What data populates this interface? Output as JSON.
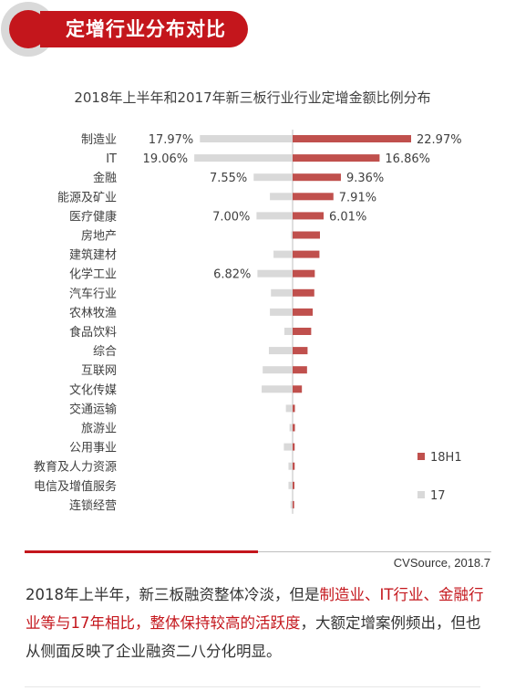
{
  "header": {
    "title": "定增行业分布对比"
  },
  "chart_data": {
    "type": "bar",
    "title": "2018年上半年和2017年新三板行业行业定增金额比例分布",
    "categories": [
      "制造业",
      "IT",
      "金融",
      "能源及矿业",
      "医疗健康",
      "房地产",
      "建筑建材",
      "化学工业",
      "汽车行业",
      "农林牧渔",
      "食品饮料",
      "综合",
      "互联网",
      "文化传媒",
      "交通运输",
      "旅游业",
      "公用事业",
      "教育及人力资源",
      "电信及增值服务",
      "连锁经营"
    ],
    "series": [
      {
        "name": "18H1",
        "color": "#c0504d",
        "values": [
          22.97,
          16.86,
          9.36,
          7.91,
          6.01,
          5.3,
          5.2,
          4.3,
          4.2,
          3.9,
          3.6,
          2.9,
          2.8,
          1.8,
          0.45,
          0.45,
          0.4,
          0.4,
          0.35,
          0.3
        ],
        "labels": [
          "22.97%",
          "16.86%",
          "9.36%",
          "7.91%",
          "6.01%",
          "",
          "",
          "",
          "",
          "",
          "",
          "",
          "",
          "",
          "",
          "",
          "",
          "",
          "",
          ""
        ]
      },
      {
        "name": "17",
        "color": "#d9d9d9",
        "values": [
          17.97,
          19.06,
          7.55,
          4.4,
          7.0,
          0.3,
          3.7,
          6.82,
          4.2,
          4.4,
          1.6,
          4.6,
          5.8,
          6.0,
          1.3,
          0.6,
          1.7,
          0.8,
          0.8,
          0.4
        ],
        "labels": [
          "17.97%",
          "19.06%",
          "7.55%",
          "",
          "7.00%",
          "",
          "",
          "6.82%",
          "",
          "",
          "",
          "",
          "",
          "",
          "",
          "",
          "",
          "",
          "",
          ""
        ]
      }
    ],
    "legend": "bottom-right"
  },
  "source": "CVSource, 2018.7",
  "summary": {
    "p1": "2018年上半年，新三板融资整体冷淡，但是",
    "h1": "制造业、IT行业、金融行业等与17年相比，整体保持较高的活跃度",
    "p2": "，大额定增案例频出，但也从侧面反映了企业融资二八分化明显。"
  }
}
